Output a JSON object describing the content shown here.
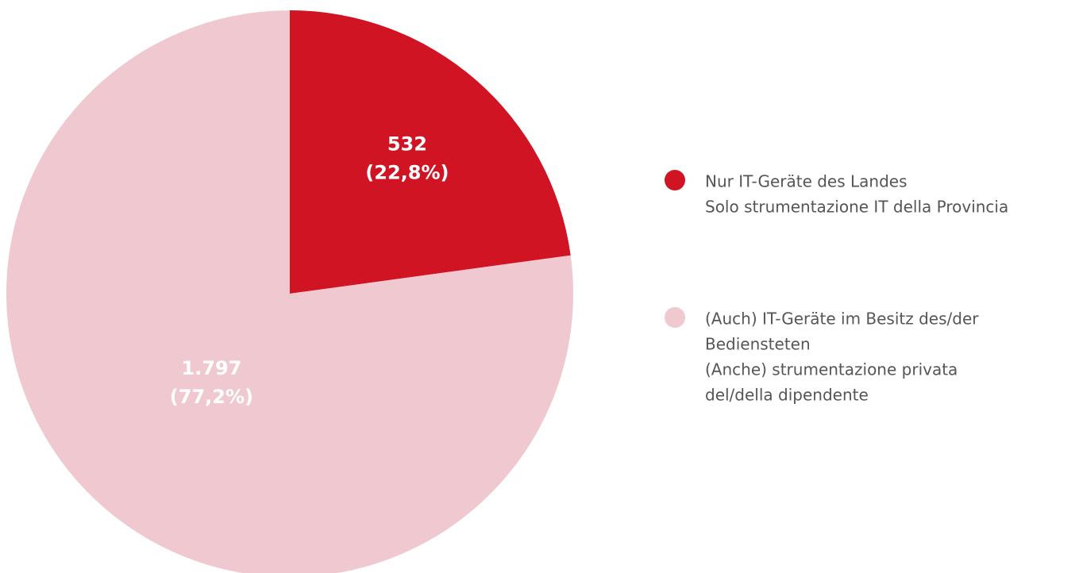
{
  "chart_data": {
    "type": "pie",
    "categories": [
      [
        "Nur IT-Geräte des Landes",
        "Solo strumentazione IT della Provincia"
      ],
      [
        "(Auch) IT-Geräte im Besitz des/der",
        "Bediensteten",
        "(Anche) strumentazione privata",
        "del/della dipendente"
      ]
    ],
    "values": [
      532,
      1797
    ],
    "value_labels": [
      "532",
      "1.797"
    ],
    "percents": [
      22.8,
      77.2
    ],
    "percent_labels": [
      "(22,8%)",
      "(77,2%)"
    ],
    "colors": [
      "#d01424",
      "#f0c8cf"
    ],
    "legend": "right"
  }
}
